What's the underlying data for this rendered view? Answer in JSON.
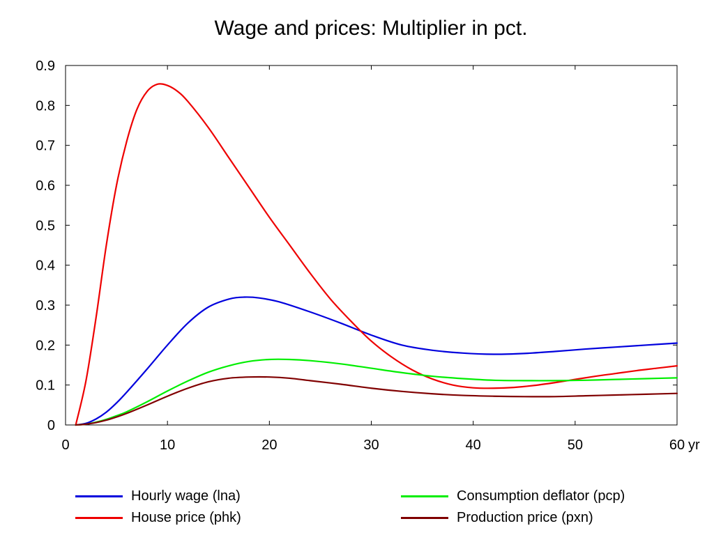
{
  "chart_data": {
    "type": "line",
    "title": "Wage and prices: Multiplier in pct.",
    "xlabel": "",
    "ylabel": "",
    "xlim": [
      0,
      60
    ],
    "ylim": [
      0,
      0.9
    ],
    "x_unit_label": "yr",
    "x_ticks": [
      0,
      10,
      20,
      30,
      40,
      50,
      60
    ],
    "x_tick_labels": [
      "0",
      "10",
      "20",
      "30",
      "40",
      "50",
      "60"
    ],
    "y_ticks": [
      0,
      0.1,
      0.2,
      0.3,
      0.4,
      0.5,
      0.6,
      0.7,
      0.8,
      0.9
    ],
    "y_tick_labels": [
      "0",
      "0.1",
      "0.2",
      "0.3",
      "0.4",
      "0.5",
      "0.6",
      "0.7",
      "0.8",
      "0.9"
    ],
    "grid": false,
    "legend_position": "bottom",
    "series": [
      {
        "name": "Hourly wage (lna)",
        "color": "#0000dd",
        "x": [
          1,
          2,
          3,
          4,
          5,
          6,
          8,
          10,
          12,
          14,
          16,
          17.5,
          19,
          21,
          24,
          27,
          30,
          33,
          36,
          39,
          42,
          45,
          48,
          51,
          54,
          57,
          60
        ],
        "y": [
          0,
          0.004,
          0.015,
          0.032,
          0.055,
          0.082,
          0.14,
          0.2,
          0.255,
          0.295,
          0.315,
          0.32,
          0.318,
          0.308,
          0.283,
          0.255,
          0.225,
          0.2,
          0.187,
          0.18,
          0.177,
          0.179,
          0.184,
          0.19,
          0.195,
          0.2,
          0.205
        ]
      },
      {
        "name": "House price (phk)",
        "color": "#ee0000",
        "x": [
          1,
          2,
          3,
          4,
          5,
          6,
          7,
          8,
          9,
          10,
          11,
          12,
          14,
          16,
          18,
          20,
          22,
          24,
          26,
          28,
          30,
          32,
          34,
          36,
          38,
          40,
          42,
          44,
          46,
          48,
          50,
          52,
          54,
          56,
          58,
          60
        ],
        "y": [
          0,
          0.11,
          0.27,
          0.45,
          0.6,
          0.71,
          0.79,
          0.835,
          0.853,
          0.85,
          0.835,
          0.81,
          0.745,
          0.67,
          0.595,
          0.52,
          0.45,
          0.38,
          0.315,
          0.26,
          0.21,
          0.17,
          0.138,
          0.115,
          0.1,
          0.093,
          0.092,
          0.094,
          0.099,
          0.106,
          0.114,
          0.122,
          0.129,
          0.136,
          0.142,
          0.148
        ]
      },
      {
        "name": "Consumption deflator (pcp)",
        "color": "#00ee00",
        "x": [
          1,
          2,
          3,
          4,
          5,
          6,
          8,
          10,
          12,
          14,
          16,
          18,
          20,
          22,
          24,
          27,
          30,
          33,
          36,
          39,
          42,
          45,
          48,
          51,
          54,
          57,
          60
        ],
        "y": [
          0,
          0.002,
          0.007,
          0.014,
          0.023,
          0.033,
          0.058,
          0.085,
          0.11,
          0.132,
          0.148,
          0.159,
          0.164,
          0.164,
          0.161,
          0.153,
          0.142,
          0.131,
          0.122,
          0.116,
          0.112,
          0.111,
          0.111,
          0.112,
          0.114,
          0.116,
          0.118
        ]
      },
      {
        "name": "Production price (pxn)",
        "color": "#800000",
        "x": [
          1,
          2,
          3,
          4,
          5,
          6,
          8,
          10,
          12,
          14,
          16,
          18,
          20,
          22,
          24,
          27,
          30,
          33,
          36,
          39,
          42,
          45,
          48,
          51,
          54,
          57,
          60
        ],
        "y": [
          0,
          0.002,
          0.006,
          0.012,
          0.02,
          0.029,
          0.05,
          0.072,
          0.092,
          0.108,
          0.117,
          0.12,
          0.12,
          0.117,
          0.111,
          0.102,
          0.092,
          0.084,
          0.078,
          0.074,
          0.072,
          0.071,
          0.071,
          0.073,
          0.075,
          0.077,
          0.079
        ]
      }
    ]
  }
}
